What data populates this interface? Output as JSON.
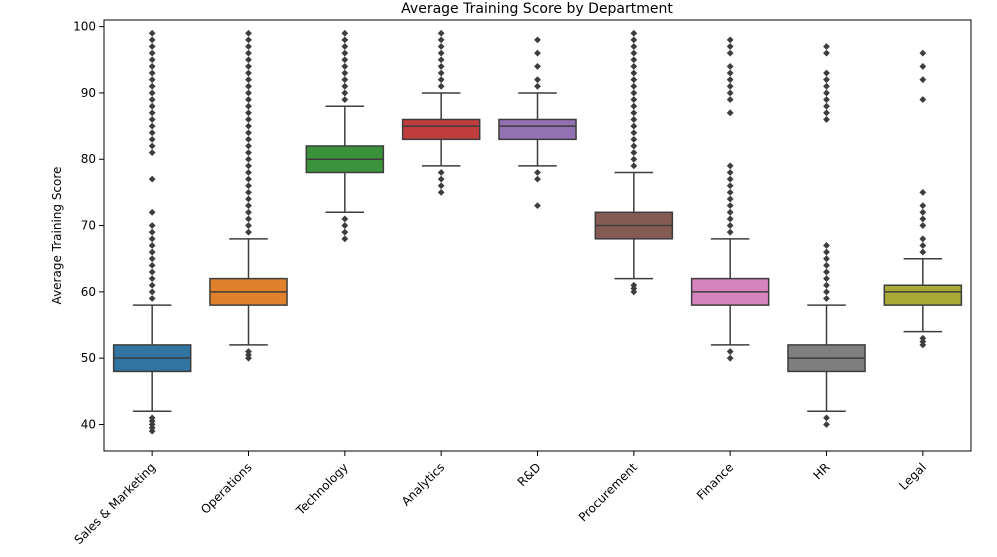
{
  "chart_data": {
    "type": "box",
    "title": "Average Training Score by Department",
    "xlabel": "",
    "ylabel": "Average Training Score",
    "ylim": [
      36,
      101
    ],
    "yticks": [
      40,
      50,
      60,
      70,
      80,
      90,
      100
    ],
    "grid": false,
    "legend": "none",
    "series": [
      {
        "category": "Sales & Marketing",
        "color": "#3274a1",
        "q1": 48,
        "median": 50,
        "q3": 52,
        "whisker_low": 42,
        "whisker_high": 58,
        "outliers": [
          39,
          39.5,
          40,
          40.5,
          41,
          59,
          60,
          61,
          62,
          63,
          64,
          65,
          66,
          67,
          68,
          69,
          70,
          72,
          77,
          81,
          82,
          83,
          84,
          85,
          86,
          87,
          88,
          89,
          90,
          91,
          92,
          93,
          94,
          95,
          96,
          97,
          98,
          99
        ]
      },
      {
        "category": "Operations",
        "color": "#e1812c",
        "q1": 58,
        "median": 60,
        "q3": 62,
        "whisker_low": 52,
        "whisker_high": 68,
        "outliers": [
          50,
          50.5,
          51,
          69,
          70,
          71,
          72,
          73,
          74,
          75,
          76,
          77,
          78,
          79,
          80,
          81,
          82,
          83,
          84,
          85,
          86,
          87,
          88,
          89,
          90,
          91,
          92,
          93,
          94,
          95,
          96,
          97,
          98,
          99
        ]
      },
      {
        "category": "Technology",
        "color": "#3a923a",
        "q1": 78,
        "median": 80,
        "q3": 82,
        "whisker_low": 72,
        "whisker_high": 88,
        "outliers": [
          68,
          69,
          70,
          71,
          89,
          90,
          91,
          92,
          93,
          94,
          95,
          96,
          97,
          98,
          99
        ]
      },
      {
        "category": "Analytics",
        "color": "#c03d3e",
        "q1": 83,
        "median": 85,
        "q3": 86,
        "whisker_low": 79,
        "whisker_high": 90,
        "outliers": [
          75,
          76,
          77,
          78,
          91,
          92,
          93,
          94,
          95,
          96,
          97,
          98,
          99
        ]
      },
      {
        "category": "R&D",
        "color": "#9372b2",
        "q1": 83,
        "median": 85,
        "q3": 86,
        "whisker_low": 79,
        "whisker_high": 90,
        "outliers": [
          73,
          77,
          78,
          91,
          92,
          94,
          96,
          98
        ]
      },
      {
        "category": "Procurement",
        "color": "#845b53",
        "q1": 68,
        "median": 70,
        "q3": 72,
        "whisker_low": 62,
        "whisker_high": 78,
        "outliers": [
          60,
          60.5,
          61,
          79,
          80,
          81,
          82,
          83,
          84,
          85,
          86,
          87,
          88,
          89,
          90,
          91,
          92,
          93,
          94,
          95,
          96,
          97,
          98,
          99
        ]
      },
      {
        "category": "Finance",
        "color": "#d684bd",
        "q1": 58,
        "median": 60,
        "q3": 62,
        "whisker_low": 52,
        "whisker_high": 68,
        "outliers": [
          50,
          51,
          69,
          70,
          71,
          72,
          73,
          74,
          75,
          76,
          77,
          78,
          79,
          87,
          89,
          90,
          91,
          92,
          93,
          94,
          96,
          97,
          98
        ]
      },
      {
        "category": "HR",
        "color": "#7f7f7f",
        "q1": 48,
        "median": 50,
        "q3": 52,
        "whisker_low": 42,
        "whisker_high": 58,
        "outliers": [
          40,
          41,
          59,
          60,
          61,
          62,
          63,
          64,
          65,
          66,
          67,
          86,
          87,
          88,
          89,
          90,
          91,
          92,
          93,
          96,
          97
        ]
      },
      {
        "category": "Legal",
        "color": "#a9aa35",
        "q1": 58,
        "median": 60,
        "q3": 61,
        "whisker_low": 54,
        "whisker_high": 65,
        "outliers": [
          52,
          52.5,
          53,
          66,
          67,
          68,
          70,
          71,
          72,
          73,
          75,
          89,
          92,
          94,
          96
        ]
      }
    ]
  }
}
